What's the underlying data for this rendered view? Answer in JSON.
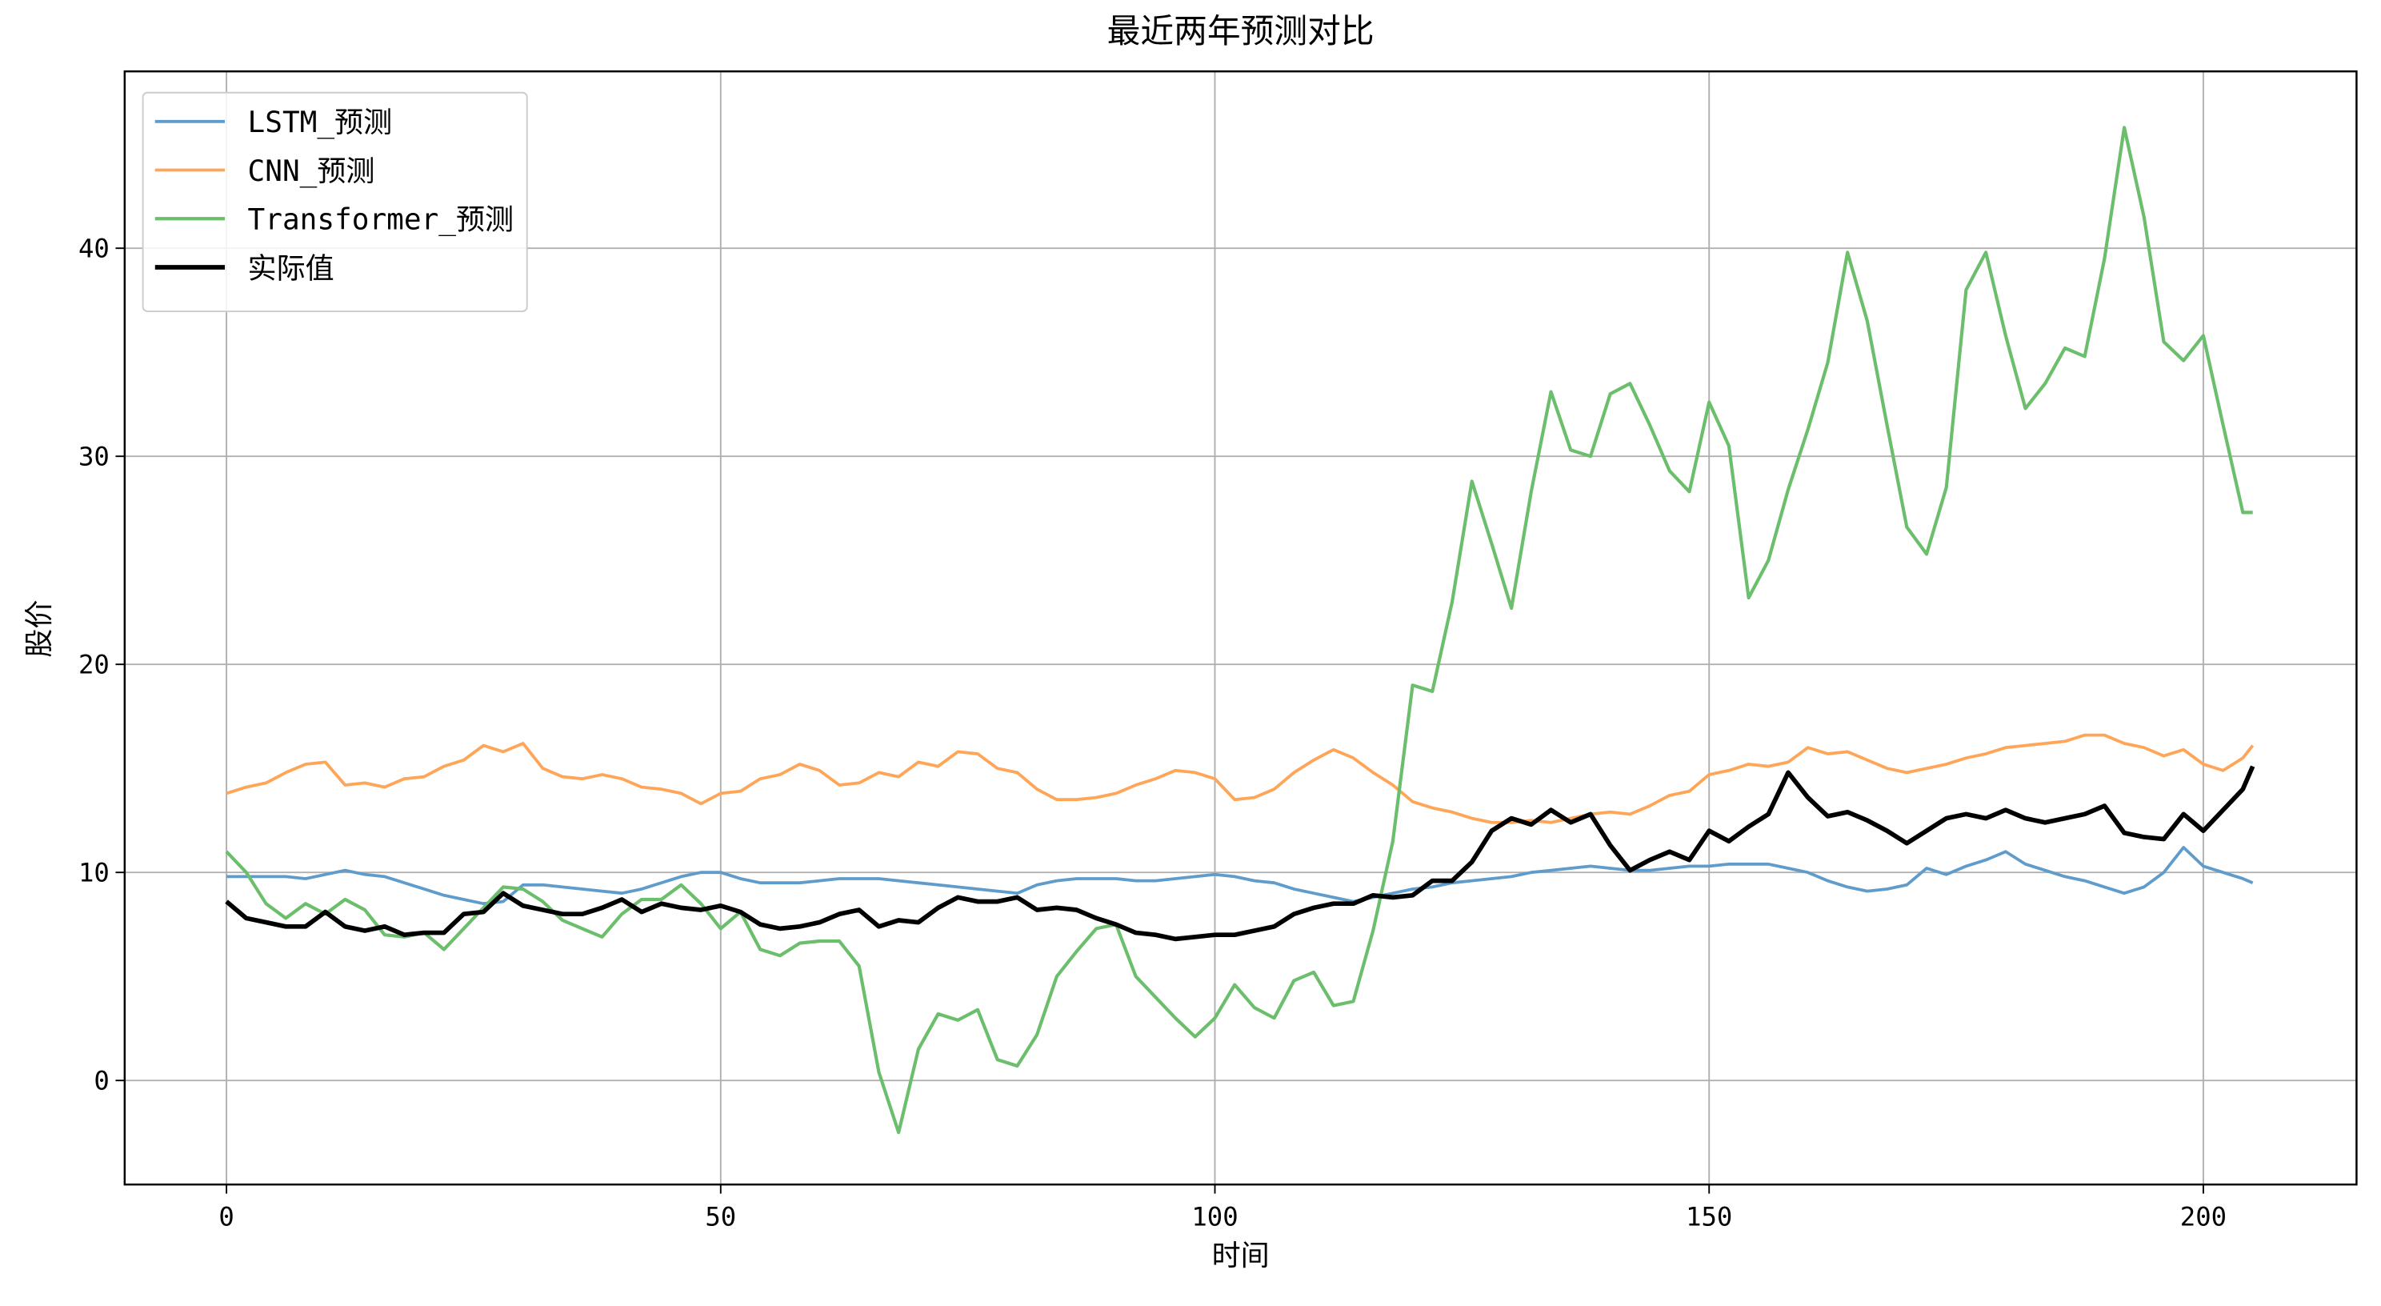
{
  "chart_data": {
    "type": "line",
    "title": "最近两年预测对比",
    "x_label": "时间",
    "y_label": "股价",
    "x": [
      0,
      2,
      4,
      6,
      8,
      10,
      12,
      14,
      16,
      18,
      20,
      22,
      24,
      26,
      28,
      30,
      32,
      34,
      36,
      38,
      40,
      42,
      44,
      46,
      48,
      50,
      52,
      54,
      56,
      58,
      60,
      62,
      64,
      66,
      68,
      70,
      72,
      74,
      76,
      78,
      80,
      82,
      84,
      86,
      88,
      90,
      92,
      94,
      96,
      98,
      100,
      102,
      104,
      106,
      108,
      110,
      112,
      114,
      116,
      118,
      120,
      122,
      124,
      126,
      128,
      130,
      132,
      134,
      136,
      138,
      140,
      142,
      144,
      146,
      148,
      150,
      152,
      154,
      156,
      158,
      160,
      162,
      164,
      166,
      168,
      170,
      172,
      174,
      176,
      178,
      180,
      182,
      184,
      186,
      188,
      190,
      192,
      194,
      196,
      198,
      200,
      202,
      204,
      205
    ],
    "series": [
      {
        "name": "LSTM_预测",
        "color": "#5f9ccb",
        "width": 2,
        "values": [
          9.8,
          9.8,
          9.8,
          9.8,
          9.7,
          9.9,
          10.1,
          9.9,
          9.8,
          9.5,
          9.2,
          8.9,
          8.7,
          8.5,
          8.6,
          9.4,
          9.4,
          9.3,
          9.2,
          9.1,
          9.0,
          9.2,
          9.5,
          9.8,
          10.0,
          10.0,
          9.7,
          9.5,
          9.5,
          9.5,
          9.6,
          9.7,
          9.7,
          9.7,
          9.6,
          9.5,
          9.4,
          9.3,
          9.2,
          9.1,
          9.0,
          9.4,
          9.6,
          9.7,
          9.7,
          9.7,
          9.6,
          9.6,
          9.7,
          9.8,
          9.9,
          9.8,
          9.6,
          9.5,
          9.2,
          9.0,
          8.8,
          8.6,
          8.8,
          9.0,
          9.2,
          9.3,
          9.5,
          9.6,
          9.7,
          9.8,
          10.0,
          10.1,
          10.2,
          10.3,
          10.2,
          10.1,
          10.1,
          10.2,
          10.3,
          10.3,
          10.4,
          10.4,
          10.4,
          10.2,
          10.0,
          9.6,
          9.3,
          9.1,
          9.2,
          9.4,
          10.2,
          9.9,
          10.3,
          10.6,
          11.0,
          10.4,
          10.1,
          9.8,
          9.6,
          9.3,
          9.0,
          9.3,
          10.0,
          11.2,
          10.3,
          10.0,
          9.7,
          9.5
        ]
      },
      {
        "name": "CNN_预测",
        "color": "#ffa557",
        "width": 2,
        "values": [
          13.8,
          14.1,
          14.3,
          14.8,
          15.2,
          15.3,
          14.2,
          14.3,
          14.1,
          14.5,
          14.6,
          15.1,
          15.4,
          16.1,
          15.8,
          16.2,
          15.0,
          14.6,
          14.5,
          14.7,
          14.5,
          14.1,
          14.0,
          13.8,
          13.3,
          13.8,
          13.9,
          14.5,
          14.7,
          15.2,
          14.9,
          14.2,
          14.3,
          14.8,
          14.6,
          15.3,
          15.1,
          15.8,
          15.7,
          15.0,
          14.8,
          14.0,
          13.5,
          13.5,
          13.6,
          13.8,
          14.2,
          14.5,
          14.9,
          14.8,
          14.5,
          13.5,
          13.6,
          14.0,
          14.8,
          15.4,
          15.9,
          15.5,
          14.8,
          14.2,
          13.4,
          13.1,
          12.9,
          12.6,
          12.4,
          12.4,
          12.5,
          12.4,
          12.6,
          12.8,
          12.9,
          12.8,
          13.2,
          13.7,
          13.9,
          14.7,
          14.9,
          15.2,
          15.1,
          15.3,
          16.0,
          15.7,
          15.8,
          15.4,
          15.0,
          14.8,
          15.0,
          15.2,
          15.5,
          15.7,
          16.0,
          16.1,
          16.2,
          16.3,
          16.6,
          16.6,
          16.2,
          16.0,
          15.6,
          15.9,
          15.2,
          14.9,
          15.5,
          16.1
        ]
      },
      {
        "name": "Transformer_预测",
        "color": "#6bbe6b",
        "width": 2.2,
        "values": [
          11.0,
          10.0,
          8.5,
          7.8,
          8.5,
          8.0,
          8.7,
          8.2,
          7.0,
          6.9,
          7.1,
          6.3,
          7.3,
          8.3,
          9.3,
          9.2,
          8.6,
          7.7,
          7.3,
          6.9,
          8.0,
          8.7,
          8.7,
          9.4,
          8.5,
          7.3,
          8.1,
          6.3,
          6.0,
          6.6,
          6.7,
          6.7,
          5.5,
          0.4,
          -2.5,
          1.5,
          3.2,
          2.9,
          3.4,
          1.0,
          0.7,
          2.2,
          5.0,
          6.2,
          7.3,
          7.5,
          5.0,
          4.0,
          3.0,
          2.1,
          3.0,
          4.6,
          3.5,
          3.0,
          4.8,
          5.2,
          3.6,
          3.8,
          7.2,
          11.5,
          19.0,
          18.7,
          23.0,
          28.8,
          25.8,
          22.7,
          28.3,
          33.1,
          30.3,
          30.0,
          33.0,
          33.5,
          31.5,
          29.3,
          28.3,
          32.6,
          30.5,
          23.2,
          25.0,
          28.4,
          31.3,
          34.5,
          39.8,
          36.5,
          31.5,
          26.6,
          25.3,
          28.5,
          38.0,
          39.8,
          35.8,
          32.3,
          33.5,
          35.2,
          34.8,
          39.5,
          45.8,
          41.5,
          35.5,
          34.6,
          35.8,
          31.5,
          27.3,
          27.3
        ]
      },
      {
        "name": "实际值",
        "color": "#000000",
        "width": 3,
        "values": [
          8.6,
          7.8,
          7.6,
          7.4,
          7.4,
          8.1,
          7.4,
          7.2,
          7.4,
          7.0,
          7.1,
          7.1,
          8.0,
          8.1,
          9.0,
          8.4,
          8.2,
          8.0,
          8.0,
          8.3,
          8.7,
          8.1,
          8.5,
          8.3,
          8.2,
          8.4,
          8.1,
          7.5,
          7.3,
          7.4,
          7.6,
          8.0,
          8.2,
          7.4,
          7.7,
          7.6,
          8.3,
          8.8,
          8.6,
          8.6,
          8.8,
          8.2,
          8.3,
          8.2,
          7.8,
          7.5,
          7.1,
          7.0,
          6.8,
          6.9,
          7.0,
          7.0,
          7.2,
          7.4,
          8.0,
          8.3,
          8.5,
          8.5,
          8.9,
          8.8,
          8.9,
          9.6,
          9.6,
          10.5,
          12.0,
          12.6,
          12.3,
          13.0,
          12.4,
          12.8,
          11.3,
          10.1,
          10.6,
          11.0,
          10.6,
          12.0,
          11.5,
          12.2,
          12.8,
          14.8,
          13.6,
          12.7,
          12.9,
          12.5,
          12.0,
          11.4,
          12.0,
          12.6,
          12.8,
          12.6,
          13.0,
          12.6,
          12.4,
          12.6,
          12.8,
          13.2,
          11.9,
          11.7,
          11.6,
          12.8,
          12.0,
          13.0,
          14.0,
          15.1
        ]
      }
    ],
    "xlim": [
      -10.3,
      215.5
    ],
    "ylim": [
      -5,
      48.5
    ],
    "xticks": [
      0,
      50,
      100,
      150,
      200
    ],
    "yticks": [
      0,
      10,
      20,
      30,
      40
    ],
    "grid": true,
    "legend": "upper left"
  }
}
